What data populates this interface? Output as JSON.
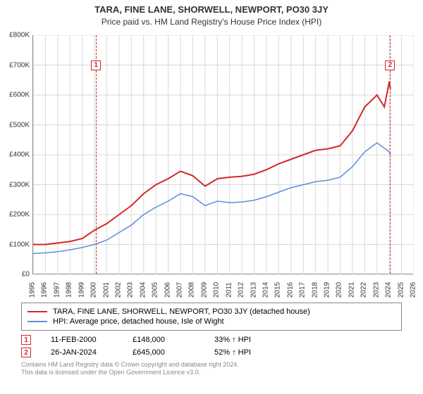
{
  "title": "TARA, FINE LANE, SHORWELL, NEWPORT, PO30 3JY",
  "subtitle": "Price paid vs. HM Land Registry's House Price Index (HPI)",
  "chart": {
    "type": "line",
    "background_color": "#ffffff",
    "grid_color": "#d8d8d8",
    "y": {
      "min": 0,
      "max": 800000,
      "step": 100000,
      "ticks": [
        "£0",
        "£100K",
        "£200K",
        "£300K",
        "£400K",
        "£500K",
        "£600K",
        "£700K",
        "£800K"
      ]
    },
    "x": {
      "min": 1995,
      "max": 2026,
      "step": 1,
      "ticks": [
        "1995",
        "1996",
        "1997",
        "1998",
        "1999",
        "2000",
        "2001",
        "2002",
        "2003",
        "2004",
        "2005",
        "2006",
        "2007",
        "2008",
        "2009",
        "2010",
        "2011",
        "2012",
        "2013",
        "2014",
        "2015",
        "2016",
        "2017",
        "2018",
        "2019",
        "2020",
        "2021",
        "2022",
        "2023",
        "2024",
        "2025",
        "2026"
      ]
    },
    "series": [
      {
        "name": "TARA, FINE LANE, SHORWELL, NEWPORT, PO30 3JY (detached house)",
        "color": "#d62728",
        "width": 2,
        "data": [
          [
            1995,
            100000
          ],
          [
            1996,
            100000
          ],
          [
            1997,
            105000
          ],
          [
            1998,
            110000
          ],
          [
            1999,
            120000
          ],
          [
            2000,
            148000
          ],
          [
            2001,
            170000
          ],
          [
            2002,
            200000
          ],
          [
            2003,
            230000
          ],
          [
            2004,
            270000
          ],
          [
            2005,
            300000
          ],
          [
            2006,
            320000
          ],
          [
            2007,
            345000
          ],
          [
            2008,
            330000
          ],
          [
            2009,
            295000
          ],
          [
            2010,
            320000
          ],
          [
            2011,
            325000
          ],
          [
            2012,
            328000
          ],
          [
            2013,
            335000
          ],
          [
            2014,
            350000
          ],
          [
            2015,
            370000
          ],
          [
            2016,
            385000
          ],
          [
            2017,
            400000
          ],
          [
            2018,
            415000
          ],
          [
            2019,
            420000
          ],
          [
            2020,
            430000
          ],
          [
            2021,
            480000
          ],
          [
            2022,
            560000
          ],
          [
            2023,
            600000
          ],
          [
            2023.6,
            560000
          ],
          [
            2024,
            645000
          ],
          [
            2024.1,
            620000
          ]
        ]
      },
      {
        "name": "HPI: Average price, detached house, Isle of Wight",
        "color": "#5b8fd6",
        "width": 1.5,
        "data": [
          [
            1995,
            70000
          ],
          [
            1996,
            72000
          ],
          [
            1997,
            76000
          ],
          [
            1998,
            82000
          ],
          [
            1999,
            90000
          ],
          [
            2000,
            100000
          ],
          [
            2001,
            115000
          ],
          [
            2002,
            140000
          ],
          [
            2003,
            165000
          ],
          [
            2004,
            200000
          ],
          [
            2005,
            225000
          ],
          [
            2006,
            245000
          ],
          [
            2007,
            270000
          ],
          [
            2008,
            260000
          ],
          [
            2009,
            230000
          ],
          [
            2010,
            245000
          ],
          [
            2011,
            240000
          ],
          [
            2012,
            242000
          ],
          [
            2013,
            248000
          ],
          [
            2014,
            260000
          ],
          [
            2015,
            275000
          ],
          [
            2016,
            290000
          ],
          [
            2017,
            300000
          ],
          [
            2018,
            310000
          ],
          [
            2019,
            315000
          ],
          [
            2020,
            325000
          ],
          [
            2021,
            360000
          ],
          [
            2022,
            410000
          ],
          [
            2023,
            440000
          ],
          [
            2024,
            410000
          ],
          [
            2024.1,
            400000
          ]
        ]
      }
    ],
    "markers": [
      {
        "id": "1",
        "x": 2000.12,
        "label_y": 700000,
        "color": "#d62728"
      },
      {
        "id": "2",
        "x": 2024.07,
        "label_y": 700000,
        "color": "#d62728"
      }
    ]
  },
  "legend": {
    "items": [
      {
        "label": "TARA, FINE LANE, SHORWELL, NEWPORT, PO30 3JY (detached house)",
        "color": "#d62728"
      },
      {
        "label": "HPI: Average price, detached house, Isle of Wight",
        "color": "#5b8fd6"
      }
    ]
  },
  "marker_table": [
    {
      "id": "1",
      "color": "#d62728",
      "date": "11-FEB-2000",
      "price": "£148,000",
      "delta": "33% ↑ HPI"
    },
    {
      "id": "2",
      "color": "#d62728",
      "date": "26-JAN-2024",
      "price": "£645,000",
      "delta": "52% ↑ HPI"
    }
  ],
  "footer": {
    "line1": "Contains HM Land Registry data © Crown copyright and database right 2024.",
    "line2": "This data is licensed under the Open Government Licence v3.0."
  }
}
